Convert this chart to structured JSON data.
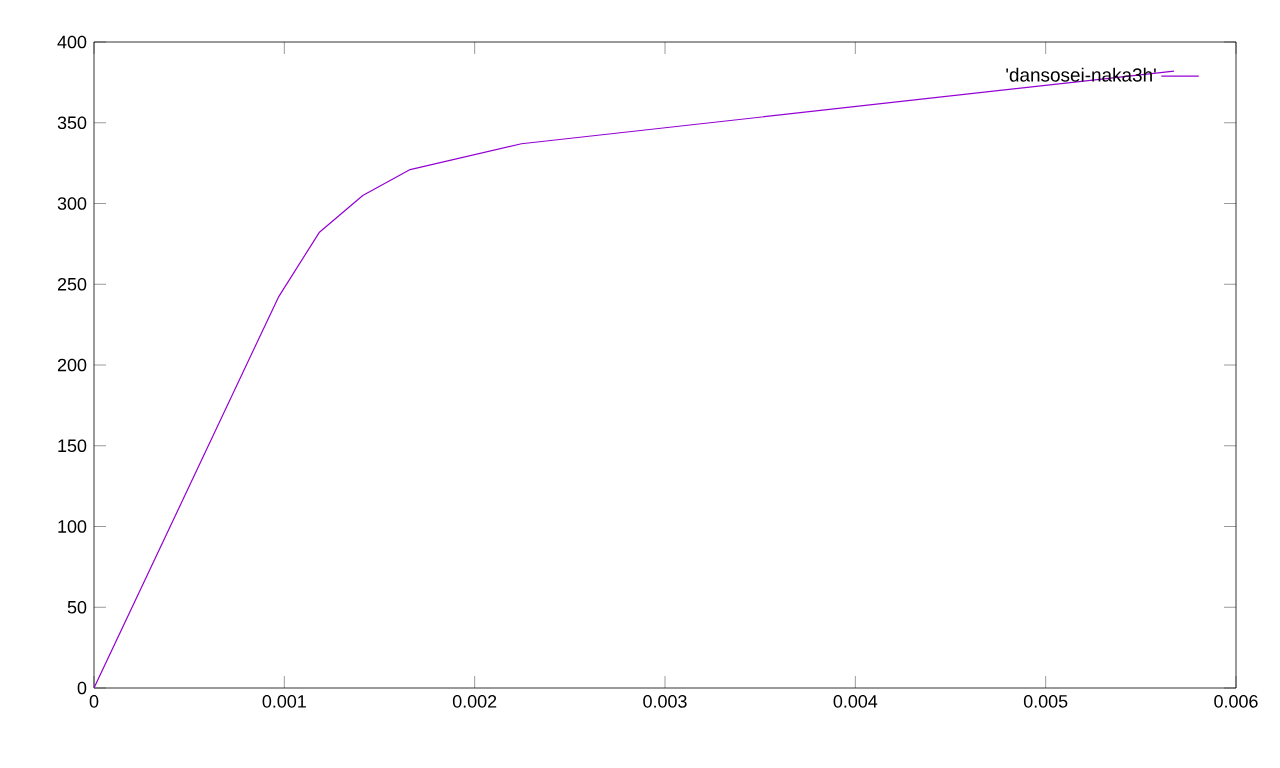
{
  "chart_data": {
    "type": "line",
    "x": [
      0,
      0.000969,
      0.001183,
      0.001412,
      0.001661,
      0.002246,
      0.005674
    ],
    "series": [
      {
        "name": "'dansosei-naka3h'",
        "color": "#9400d3",
        "values": [
          0,
          242,
          282,
          305,
          321,
          337,
          382
        ]
      }
    ],
    "xlim": [
      0,
      0.006
    ],
    "ylim": [
      0,
      400
    ],
    "xticks": [
      0,
      0.001,
      0.002,
      0.003,
      0.004,
      0.005,
      0.006
    ],
    "yticks": [
      0,
      50,
      100,
      150,
      200,
      250,
      300,
      350,
      400
    ],
    "grid": false,
    "legend": "top right",
    "marker": "none",
    "line_style": "solid"
  }
}
